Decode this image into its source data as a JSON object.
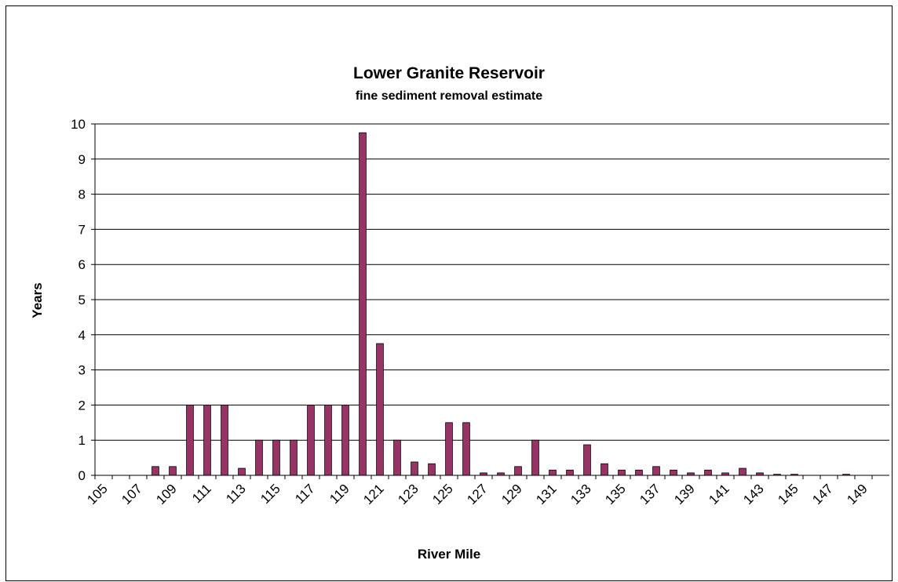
{
  "chart_data": {
    "type": "bar",
    "title": "Lower Granite Reservoir",
    "subtitle": "fine sediment removal estimate",
    "x_label": "River Mile",
    "y_label": "Years",
    "categories": [
      105,
      null,
      107,
      null,
      109,
      null,
      111,
      null,
      113,
      null,
      115,
      null,
      117,
      null,
      119,
      null,
      121,
      null,
      123,
      null,
      125,
      null,
      127,
      null,
      129,
      null,
      131,
      null,
      133,
      null,
      135,
      null,
      137,
      null,
      139,
      null,
      141,
      null,
      143,
      null,
      145,
      null,
      147,
      null,
      149,
      null
    ],
    "values": [
      0,
      0,
      0,
      0.25,
      0.25,
      2,
      2,
      2,
      0.2,
      1,
      1,
      1,
      2,
      2,
      2,
      9.75,
      3.75,
      1,
      0.38,
      0.33,
      1.5,
      1.5,
      0.07,
      0.07,
      0.25,
      1,
      0.15,
      0.15,
      0.87,
      0.33,
      0.15,
      0.15,
      0.25,
      0.15,
      0.07,
      0.15,
      0.07,
      0.2,
      0.07,
      0.03,
      0.03,
      0,
      0,
      0.03,
      0,
      0
    ],
    "color": "#993366",
    "ylim": [
      0,
      10
    ],
    "yticks": [
      0,
      1,
      2,
      3,
      4,
      5,
      6,
      7,
      8,
      9,
      10
    ],
    "grid": true
  }
}
